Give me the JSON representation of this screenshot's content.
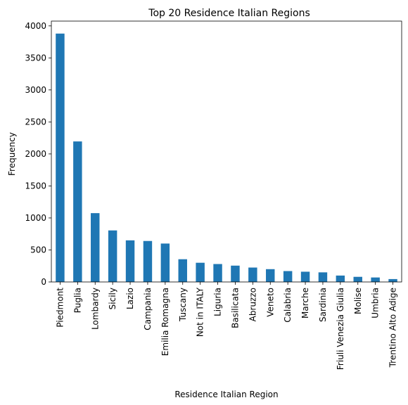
{
  "chart_data": {
    "type": "bar",
    "title": "Top 20 Residence Italian Regions",
    "xlabel": "Residence Italian Region",
    "ylabel": "Frequency",
    "categories": [
      "Piedmont",
      "Puglia",
      "Lombardy",
      "Sicily",
      "Lazio",
      "Campania",
      "Emilia Romagna",
      "Tuscany",
      "Not in ITALY",
      "Liguria",
      "Basilicata",
      "Abruzzo",
      "Veneto",
      "Calabria",
      "Marche",
      "Sardinia",
      "Friuli Venezia Giulia",
      "Molise",
      "Umbria",
      "Trentino Alto Adige"
    ],
    "values": [
      3880,
      2195,
      1075,
      805,
      650,
      640,
      600,
      355,
      300,
      280,
      255,
      225,
      200,
      170,
      160,
      150,
      100,
      80,
      70,
      45
    ],
    "ylim": [
      0,
      4075
    ],
    "yticks": [
      0,
      500,
      1000,
      1500,
      2000,
      2500,
      3000,
      3500,
      4000
    ],
    "grid": false,
    "legend": "none",
    "bar_color": "#1f77b4"
  }
}
